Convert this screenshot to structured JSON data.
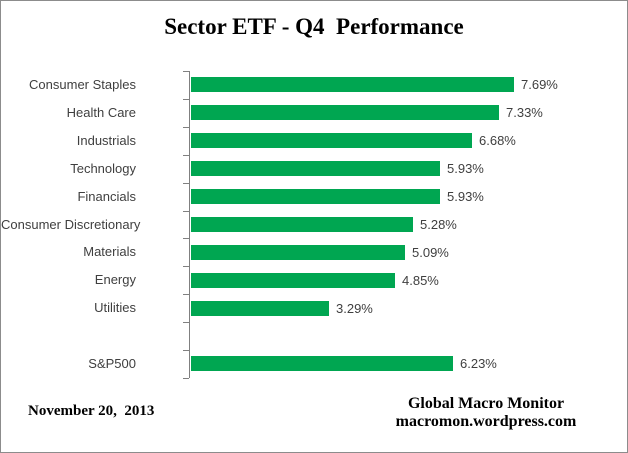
{
  "title": "Sector ETF - Q4  Performance",
  "footer": {
    "date": "November 20,  2013",
    "source_name": "Global Macro Monitor",
    "source_url": "macromon.wordpress.com"
  },
  "chart_data": {
    "type": "bar",
    "orientation": "horizontal",
    "title": "Sector ETF - Q4  Performance",
    "categories": [
      "Consumer Staples",
      "Health Care",
      "Industrials",
      "Technology",
      "Financials",
      "Consumer Discretionary",
      "Materials",
      "Energy",
      "Utilities",
      "",
      "S&P500"
    ],
    "values": [
      7.69,
      7.33,
      6.68,
      5.93,
      5.93,
      5.28,
      5.09,
      4.85,
      3.29,
      null,
      6.23
    ],
    "value_labels": [
      "7.69%",
      "7.33%",
      "6.68%",
      "5.93%",
      "5.93%",
      "5.28%",
      "5.09%",
      "4.85%",
      "3.29%",
      "",
      "6.23%"
    ],
    "xlabel": "",
    "ylabel": "",
    "xlim": [
      0,
      9
    ],
    "grid": false,
    "legend": false,
    "data_labels": true,
    "colors": {
      "bar": "#00A651",
      "label": "#3F3F3F",
      "axis": "#808080",
      "title": "#000000",
      "background": "#FFFFFF",
      "border": "#8C8C8C"
    }
  }
}
